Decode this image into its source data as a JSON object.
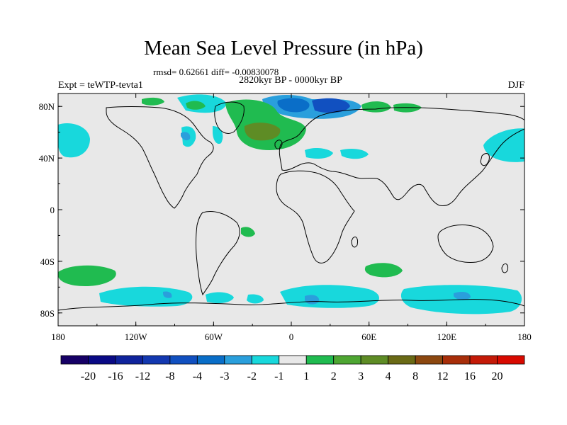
{
  "title": "Mean Sea Level Pressure (in hPa)",
  "stats": "rmsd= 0.62661 diff= -0.00830078",
  "period": "2820kyr BP - 0000kyr BP",
  "expt": "Expt = teWTP-tevta1",
  "season": "DJF",
  "axes": {
    "lat_labels": [
      "80N",
      "40N",
      "0",
      "40S",
      "80S"
    ],
    "lon_labels": [
      "180",
      "120W",
      "60W",
      "0",
      "60E",
      "120E",
      "180"
    ]
  },
  "colorbar": {
    "labels": [
      "-20",
      "-16",
      "-12",
      "-8",
      "-4",
      "-3",
      "-2",
      "-1",
      "1",
      "2",
      "3",
      "4",
      "8",
      "12",
      "16",
      "20"
    ],
    "colors": [
      "#160066",
      "#0a0a85",
      "#0f239c",
      "#1338b0",
      "#1150c0",
      "#0a6ec8",
      "#2a9fdc",
      "#18d8dc",
      "#e8e8e8",
      "#20bb50",
      "#4ea632",
      "#5e8c25",
      "#6a6a15",
      "#8c4810",
      "#a82e0a",
      "#c41a08",
      "#d80a00"
    ]
  },
  "colors": {
    "background": "#e8e8e8",
    "coast": "#000000"
  }
}
